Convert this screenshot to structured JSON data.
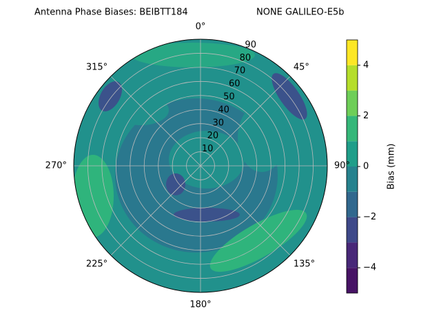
{
  "chart_data": {
    "type": "polar_contour",
    "title": "Antenna Phase Biases: BEIBTT184",
    "subtitle": "NONE GALILEO-E5b",
    "rlim": [
      0,
      90
    ],
    "rticks": [
      10,
      20,
      30,
      40,
      50,
      60,
      70,
      80,
      90
    ],
    "thetaticks": [
      {
        "value": 0,
        "label": "0°"
      },
      {
        "value": 45,
        "label": "45°"
      },
      {
        "value": 90,
        "label": "90°"
      },
      {
        "value": 135,
        "label": "135°"
      },
      {
        "value": 180,
        "label": "180°"
      },
      {
        "value": 225,
        "label": "225°"
      },
      {
        "value": 270,
        "label": "270°"
      },
      {
        "value": 315,
        "label": "315°"
      }
    ],
    "colorbar_label": "Bias (mm)",
    "clim": [
      -5,
      5
    ],
    "cticks": [
      {
        "value": -4,
        "label": "−4"
      },
      {
        "value": -2,
        "label": "−2"
      },
      0,
      2,
      4
    ],
    "levels": [
      -5,
      -4,
      -3,
      -2,
      -1,
      0,
      1,
      2,
      3,
      4,
      5
    ],
    "colors": [
      "#471365",
      "#482878",
      "#3e4989",
      "#31688e",
      "#26828e",
      "#1f9e89",
      "#35b779",
      "#6ece58",
      "#b5de2b",
      "#fde725"
    ],
    "grid": true
  }
}
